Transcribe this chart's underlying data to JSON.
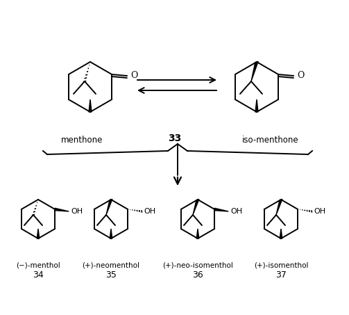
{
  "bg_color": "#ffffff",
  "label_fontsize": 8.5,
  "number_fontsize": 9,
  "bold_number": "33",
  "menthone_label": "menthone",
  "iso_label": "iso-menthone",
  "bottom_labels": [
    "(−)-menthol",
    "(+)-neomenthol",
    "(+)-neo-isomenthol",
    "(+)-isomenthol"
  ],
  "bottom_numbers": [
    "34",
    "35",
    "36",
    "37"
  ]
}
